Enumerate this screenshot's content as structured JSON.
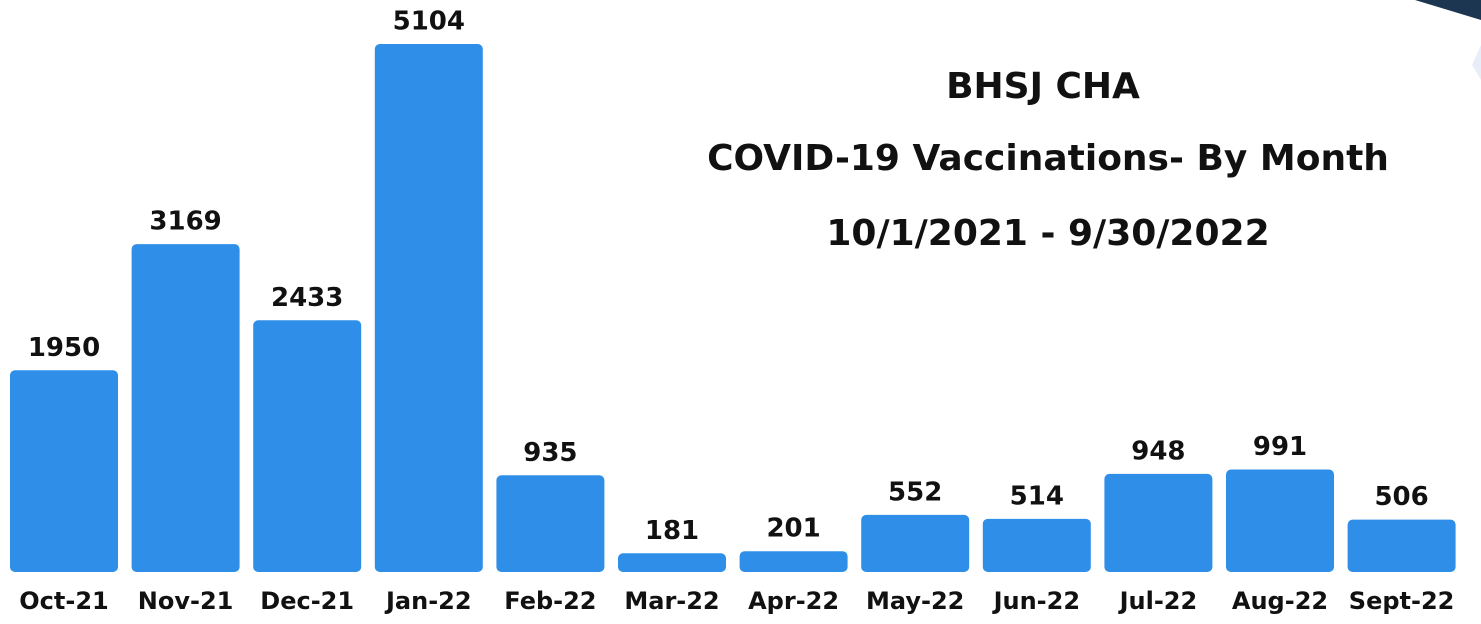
{
  "chart_data": {
    "type": "bar",
    "title": "BHSJ CHA",
    "subtitle": [
      "COVID-19 Vaccinations- By Month",
      "10/1/2021 - 9/30/2022"
    ],
    "categories": [
      "Oct-21",
      "Nov-21",
      "Dec-21",
      "Jan-22",
      "Feb-22",
      "Mar-22",
      "Apr-22",
      "May-22",
      "Jun-22",
      "Jul-22",
      "Aug-22",
      "Sept-22"
    ],
    "values": [
      1950,
      3169,
      2433,
      5104,
      935,
      181,
      201,
      552,
      514,
      948,
      991,
      506
    ],
    "color": "#2f8fe8",
    "ylim": [
      0,
      5104
    ]
  }
}
